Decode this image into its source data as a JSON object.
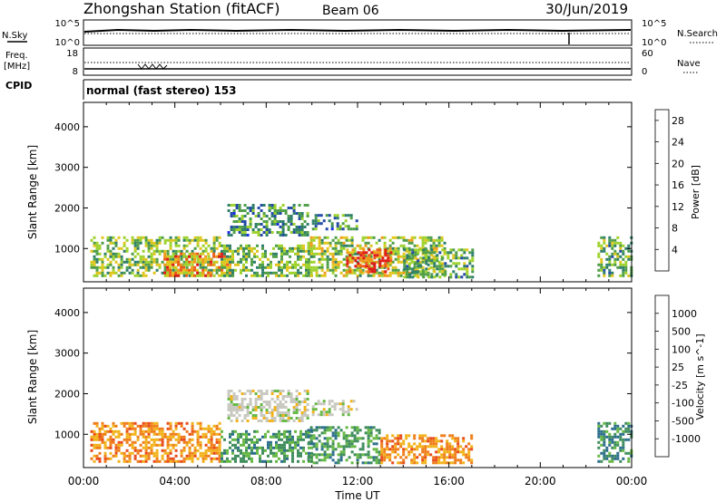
{
  "header": {
    "title": "Zhongshan Station (fitACF)",
    "beam": "Beam 06",
    "date": "30/Jun/2019"
  },
  "noise_panel": {
    "left_label": "N.Sky",
    "left_top_tick": "10^5",
    "left_bottom_tick": "10^0",
    "right_label": "N.Search",
    "right_top_tick": "10^5",
    "right_bottom_tick": "10^0"
  },
  "freq_panel": {
    "left_label_line1": "Freq.",
    "left_label_line2": "[MHz]",
    "left_top_tick": "18",
    "left_bottom_tick": "8",
    "right_label": "Nave",
    "right_top_tick": "60",
    "right_bottom_tick": "0"
  },
  "cpid": {
    "label": "CPID",
    "value": "normal (fast stereo) 153"
  },
  "chart_data": [
    {
      "type": "heatmap",
      "panel": "power",
      "ylabel": "Slant Range [km]",
      "xlabel": "Time UT",
      "xlim_hours": [
        0,
        24
      ],
      "ylim": [
        180,
        4600
      ],
      "yticks": [
        "1000",
        "2000",
        "3000",
        "4000"
      ],
      "xticks": [
        "00:00",
        "04:00",
        "08:00",
        "12:00",
        "16:00",
        "20:00",
        "00:00"
      ],
      "colorbar": {
        "label": "Power [dB]",
        "ticks": [
          "4",
          "8",
          "12",
          "16",
          "20",
          "24",
          "28"
        ],
        "range": [
          0,
          30
        ],
        "colors": [
          "#1a2ee8",
          "#234aa8",
          "#2f7f6a",
          "#4f9e48",
          "#9ed22c",
          "#e2c51c",
          "#f09a1a",
          "#ed5a1a",
          "#e01a1a"
        ]
      },
      "scatter_regions": [
        {
          "t0": 0.3,
          "t1": 6.0,
          "r0": 300,
          "r1": 1300,
          "mean": 14
        },
        {
          "t0": 3.5,
          "t1": 6.5,
          "r0": 300,
          "r1": 900,
          "mean": 22
        },
        {
          "t0": 6.0,
          "t1": 10.0,
          "r0": 300,
          "r1": 1100,
          "mean": 13
        },
        {
          "t0": 6.3,
          "t1": 9.8,
          "r0": 1350,
          "r1": 2100,
          "mean": 9
        },
        {
          "t0": 10.0,
          "t1": 12.0,
          "r0": 1450,
          "r1": 1850,
          "mean": 9
        },
        {
          "t0": 9.8,
          "t1": 15.8,
          "r0": 300,
          "r1": 1300,
          "mean": 15
        },
        {
          "t0": 11.5,
          "t1": 13.5,
          "r0": 400,
          "r1": 1000,
          "mean": 25
        },
        {
          "t0": 14.0,
          "t1": 17.0,
          "r0": 300,
          "r1": 1000,
          "mean": 12
        },
        {
          "t0": 22.5,
          "t1": 24.0,
          "r0": 300,
          "r1": 1300,
          "mean": 12
        }
      ]
    },
    {
      "type": "heatmap",
      "panel": "velocity",
      "ylabel": "Slant Range [km]",
      "xlabel": "Time UT",
      "xlim_hours": [
        0,
        24
      ],
      "ylim": [
        180,
        4600
      ],
      "yticks": [
        "1000",
        "2000",
        "3000",
        "4000"
      ],
      "xticks": [
        "00:00",
        "04:00",
        "08:00",
        "12:00",
        "16:00",
        "20:00",
        "00:00"
      ],
      "colorbar": {
        "label": "Velocity [m s^-1]",
        "ticks": [
          "1000",
          "500",
          "100",
          "25",
          "-25",
          "-100",
          "-500",
          "-1000"
        ],
        "colors": [
          "#1c3bc8",
          "#2c6e8e",
          "#3f8d5c",
          "#66b844",
          "#c8c8c0",
          "#f2b31a",
          "#ef7d1a",
          "#e84a1a",
          "#e01a1a"
        ]
      },
      "scatter_regions": [
        {
          "t0": 0.3,
          "t1": 6.0,
          "r0": 300,
          "r1": 1300,
          "class": "orange"
        },
        {
          "t0": 6.0,
          "t1": 10.0,
          "r0": 300,
          "r1": 1100,
          "class": "green"
        },
        {
          "t0": 6.3,
          "t1": 9.8,
          "r0": 1350,
          "r1": 2100,
          "class": "grey"
        },
        {
          "t0": 10.0,
          "t1": 12.0,
          "r0": 1450,
          "r1": 1850,
          "class": "grey"
        },
        {
          "t0": 9.8,
          "t1": 13.0,
          "r0": 300,
          "r1": 1200,
          "class": "green"
        },
        {
          "t0": 13.0,
          "t1": 17.0,
          "r0": 300,
          "r1": 1000,
          "class": "orange"
        },
        {
          "t0": 22.5,
          "t1": 24.0,
          "r0": 300,
          "r1": 1300,
          "class": "teal"
        }
      ]
    }
  ]
}
